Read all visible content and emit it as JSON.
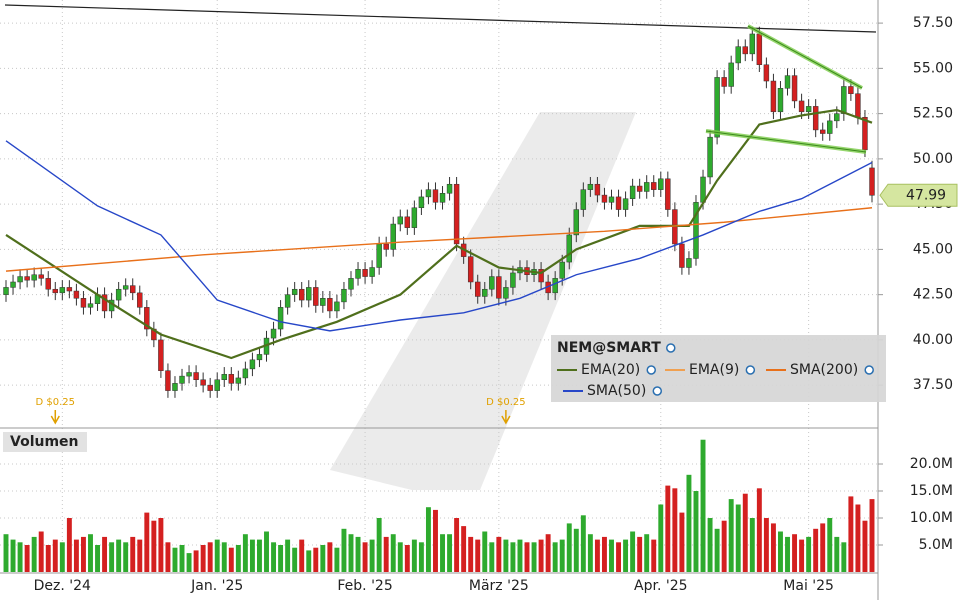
{
  "chart_data": {
    "type": "candlestick",
    "title": "NEM@SMART",
    "volume_label": "Volumen",
    "categories": [
      null,
      null,
      null,
      null,
      null,
      null,
      null,
      null,
      "Dez. '24",
      null,
      null,
      null,
      null,
      null,
      null,
      null,
      null,
      null,
      null,
      null,
      null,
      null,
      null,
      null,
      null,
      null,
      null,
      null,
      null,
      null,
      "Jan. '25",
      null,
      null,
      null,
      null,
      null,
      null,
      null,
      null,
      null,
      null,
      null,
      null,
      null,
      null,
      null,
      null,
      null,
      null,
      null,
      null,
      "Feb. '25",
      null,
      null,
      null,
      null,
      null,
      null,
      null,
      null,
      null,
      null,
      null,
      null,
      null,
      null,
      null,
      null,
      null,
      null,
      "März '25",
      null,
      null,
      null,
      null,
      null,
      null,
      null,
      null,
      null,
      null,
      null,
      null,
      null,
      null,
      null,
      null,
      null,
      null,
      null,
      null,
      null,
      null,
      "Apr. '25",
      null,
      null,
      null,
      null,
      null,
      null,
      null,
      null,
      null,
      null,
      null,
      null,
      null,
      null,
      null,
      null,
      null,
      null,
      null,
      null,
      "Mai '25",
      null,
      null,
      null,
      null,
      null,
      null,
      null,
      null,
      null
    ],
    "open": [
      42.5,
      42.9,
      43.2,
      43.5,
      43.3,
      43.6,
      43.4,
      42.8,
      42.6,
      42.9,
      42.7,
      42.3,
      41.8,
      42.0,
      42.5,
      41.6,
      42.2,
      42.8,
      43.0,
      42.6,
      41.8,
      40.6,
      40.0,
      38.3,
      37.2,
      37.6,
      38.0,
      38.2,
      37.8,
      37.5,
      37.2,
      37.8,
      38.1,
      37.6,
      37.9,
      38.4,
      38.9,
      39.2,
      40.1,
      40.6,
      41.8,
      42.5,
      42.8,
      42.2,
      42.9,
      41.9,
      42.3,
      41.6,
      42.1,
      42.8,
      43.4,
      43.9,
      43.5,
      44.0,
      45.3,
      45.0,
      46.4,
      46.8,
      46.2,
      47.3,
      47.9,
      48.3,
      47.6,
      48.1,
      48.6,
      45.3,
      44.6,
      43.2,
      42.4,
      42.8,
      43.5,
      42.3,
      42.9,
      43.7,
      44.0,
      43.6,
      43.9,
      43.2,
      42.6,
      43.4,
      44.3,
      45.8,
      47.2,
      48.3,
      48.6,
      48.0,
      47.6,
      47.9,
      47.2,
      47.8,
      48.5,
      48.2,
      48.7,
      48.3,
      48.9,
      47.2,
      45.3,
      44.0,
      44.5,
      47.6,
      49.0,
      51.2,
      54.5,
      54.0,
      55.3,
      56.2,
      55.8,
      56.9,
      55.2,
      54.3,
      52.6,
      53.9,
      54.6,
      53.2,
      52.6,
      52.9,
      51.6,
      51.4,
      52.1,
      52.5,
      54.0,
      53.6,
      52.3,
      49.5
    ],
    "high": [
      43.3,
      43.6,
      43.9,
      43.9,
      44.0,
      44.0,
      43.8,
      43.2,
      43.3,
      43.3,
      43.1,
      42.7,
      42.4,
      42.9,
      42.9,
      42.6,
      43.2,
      43.4,
      43.4,
      43.0,
      42.2,
      41.0,
      40.4,
      38.7,
      38.0,
      38.4,
      38.6,
      38.6,
      38.2,
      37.9,
      38.2,
      38.5,
      38.5,
      38.3,
      38.8,
      39.3,
      39.6,
      40.5,
      41.0,
      42.2,
      42.9,
      43.2,
      43.2,
      43.3,
      43.3,
      42.7,
      42.7,
      42.5,
      43.2,
      43.8,
      44.3,
      44.3,
      44.4,
      45.7,
      45.7,
      46.8,
      47.2,
      47.2,
      47.7,
      48.3,
      48.7,
      48.7,
      48.5,
      49.0,
      49.0,
      45.7,
      45.0,
      43.6,
      43.2,
      43.9,
      43.9,
      43.3,
      44.1,
      44.4,
      44.4,
      44.3,
      44.3,
      43.6,
      43.8,
      44.7,
      46.2,
      47.6,
      48.7,
      49.0,
      49.0,
      48.4,
      48.3,
      48.3,
      48.2,
      48.9,
      48.9,
      49.1,
      49.1,
      49.3,
      49.3,
      47.6,
      45.7,
      44.9,
      48.0,
      49.4,
      51.6,
      54.9,
      54.9,
      55.7,
      56.6,
      56.6,
      57.3,
      57.3,
      55.6,
      54.7,
      54.3,
      55.0,
      55.0,
      53.6,
      53.3,
      53.3,
      52.0,
      52.5,
      52.9,
      54.4,
      54.4,
      54.0,
      52.7,
      49.9
    ],
    "low": [
      42.1,
      42.5,
      42.8,
      42.9,
      42.9,
      43.0,
      42.4,
      42.2,
      42.2,
      42.3,
      41.9,
      41.4,
      41.4,
      41.6,
      41.2,
      41.2,
      41.8,
      42.4,
      42.2,
      41.4,
      40.2,
      39.6,
      37.9,
      36.8,
      36.8,
      37.2,
      37.6,
      37.4,
      37.1,
      36.8,
      36.8,
      37.4,
      37.2,
      37.2,
      37.5,
      38.0,
      38.5,
      38.8,
      39.7,
      40.2,
      41.4,
      42.1,
      41.8,
      41.8,
      41.5,
      41.5,
      41.2,
      41.2,
      41.7,
      42.4,
      43.0,
      43.1,
      43.1,
      43.6,
      44.6,
      44.6,
      46.0,
      45.8,
      45.8,
      46.9,
      47.5,
      47.2,
      47.2,
      47.7,
      44.9,
      44.2,
      42.8,
      42.0,
      42.0,
      42.4,
      41.9,
      41.9,
      42.5,
      43.3,
      43.2,
      43.2,
      42.8,
      42.2,
      42.2,
      43.0,
      43.9,
      45.4,
      46.8,
      47.9,
      47.6,
      47.2,
      47.2,
      46.8,
      46.8,
      47.4,
      47.8,
      47.8,
      47.9,
      47.9,
      46.8,
      44.9,
      43.6,
      43.6,
      44.1,
      47.2,
      48.6,
      50.8,
      53.6,
      53.6,
      54.9,
      55.4,
      55.4,
      54.8,
      53.9,
      52.2,
      52.2,
      53.5,
      52.8,
      52.2,
      52.2,
      51.2,
      51.0,
      51.0,
      51.7,
      52.1,
      53.2,
      51.9,
      50.1,
      47.6
    ],
    "close": [
      42.9,
      43.2,
      43.5,
      43.3,
      43.6,
      43.4,
      42.8,
      42.6,
      42.9,
      42.7,
      42.3,
      41.8,
      42.0,
      42.5,
      41.6,
      42.2,
      42.8,
      43.0,
      42.6,
      41.8,
      40.6,
      40.0,
      38.3,
      37.2,
      37.6,
      38.0,
      38.2,
      37.8,
      37.5,
      37.2,
      37.8,
      38.1,
      37.6,
      37.9,
      38.4,
      38.9,
      39.2,
      40.1,
      40.6,
      41.8,
      42.5,
      42.8,
      42.2,
      42.9,
      41.9,
      42.3,
      41.6,
      42.1,
      42.8,
      43.4,
      43.9,
      43.5,
      44.0,
      45.3,
      45.0,
      46.4,
      46.8,
      46.2,
      47.3,
      47.9,
      48.3,
      47.6,
      48.1,
      48.6,
      45.3,
      44.6,
      43.2,
      42.4,
      42.8,
      43.5,
      42.3,
      42.9,
      43.7,
      44.0,
      43.6,
      43.9,
      43.2,
      42.6,
      43.4,
      44.3,
      45.8,
      47.2,
      48.3,
      48.6,
      48.0,
      47.6,
      47.9,
      47.2,
      47.8,
      48.5,
      48.2,
      48.7,
      48.3,
      48.9,
      47.2,
      45.3,
      44.0,
      44.5,
      47.6,
      49.0,
      51.2,
      54.5,
      54.0,
      55.3,
      56.2,
      55.8,
      56.9,
      55.2,
      54.3,
      52.6,
      53.9,
      54.6,
      53.2,
      52.6,
      52.9,
      51.6,
      51.4,
      52.1,
      52.5,
      54.0,
      53.6,
      52.3,
      50.5,
      47.99
    ],
    "volume": [
      7.0,
      6.0,
      5.5,
      5.0,
      6.5,
      7.5,
      5.0,
      6.0,
      5.5,
      10.0,
      6.0,
      6.5,
      7.0,
      5.0,
      6.5,
      5.5,
      6.0,
      5.5,
      6.5,
      6.0,
      11.0,
      9.5,
      10.0,
      5.5,
      4.5,
      5.0,
      3.5,
      4.0,
      5.0,
      5.5,
      6.0,
      5.5,
      4.5,
      5.0,
      7.0,
      6.0,
      6.0,
      7.5,
      5.5,
      5.0,
      6.0,
      4.5,
      6.0,
      4.0,
      4.5,
      5.0,
      5.5,
      4.5,
      8.0,
      7.0,
      6.5,
      5.5,
      6.0,
      10.0,
      6.5,
      7.0,
      5.5,
      5.0,
      6.0,
      5.5,
      12.0,
      11.5,
      7.0,
      7.0,
      10.0,
      8.5,
      6.5,
      6.0,
      7.5,
      5.5,
      6.5,
      6.0,
      5.5,
      6.0,
      5.5,
      5.5,
      6.0,
      7.0,
      5.5,
      6.0,
      9.0,
      8.0,
      10.5,
      7.0,
      6.0,
      6.5,
      6.0,
      5.5,
      6.0,
      7.5,
      6.5,
      7.0,
      6.0,
      12.5,
      16.0,
      15.5,
      11.0,
      18.0,
      15.0,
      24.5,
      10.0,
      8.0,
      9.5,
      13.5,
      12.5,
      14.5,
      10.0,
      15.5,
      10.0,
      9.0,
      7.5,
      6.5,
      7.0,
      6.0,
      6.5,
      8.0,
      9.0,
      10.0,
      6.5,
      5.5,
      14.0,
      12.5,
      9.5,
      13.5
    ],
    "up_color": "#2eaa2e",
    "down_color": "#d42020",
    "ylim": [
      35.3,
      58.5
    ],
    "yticks": [
      {
        "value": 57.5,
        "label": "57.50"
      },
      {
        "value": 55,
        "label": "55.00"
      },
      {
        "value": 52.5,
        "label": "52.50"
      },
      {
        "value": 50,
        "label": "50.00"
      },
      {
        "value": 47.5,
        "label": "47.50"
      },
      {
        "value": 45,
        "label": "45.00"
      },
      {
        "value": 42.5,
        "label": "42.50"
      },
      {
        "value": 40,
        "label": "40.00"
      },
      {
        "value": 37.5,
        "label": "37.50"
      }
    ],
    "y2lim": [
      0,
      26.3
    ],
    "y2ticks": [
      {
        "value": 20,
        "label": "20.0M"
      },
      {
        "value": 15,
        "label": "15.0M"
      },
      {
        "value": 10,
        "label": "10.0M"
      },
      {
        "value": 5,
        "label": "5.0M"
      }
    ],
    "grid": true,
    "series": [
      {
        "name": "EMA(20)",
        "color": "#4f6f1c",
        "x": [
          0,
          13,
          22,
          32,
          39,
          47,
          56,
          64,
          70,
          76,
          81,
          90,
          97,
          101,
          107,
          113,
          118,
          123
        ],
        "values": [
          45.8,
          42.5,
          40.3,
          39.0,
          40.0,
          41.0,
          42.5,
          45.2,
          44.0,
          43.7,
          45.0,
          46.3,
          46.3,
          48.8,
          51.9,
          52.4,
          52.7,
          52.0
        ]
      },
      {
        "name": "EMA(9)",
        "color": "#f0a050",
        "x": [],
        "values": []
      },
      {
        "name": "SMA(200)",
        "color": "#e8701a",
        "x": [
          0,
          28,
          56,
          85,
          102,
          123
        ],
        "values": [
          43.8,
          44.7,
          45.4,
          46.0,
          46.5,
          47.3
        ]
      },
      {
        "name": "SMA(50)",
        "color": "#2747c8",
        "x": [
          0,
          13,
          22,
          30,
          39,
          46,
          56,
          65,
          73,
          81,
          90,
          99,
          107,
          113,
          118,
          123
        ],
        "values": [
          51.0,
          47.4,
          45.8,
          42.2,
          41.0,
          40.5,
          41.1,
          41.5,
          42.3,
          43.6,
          44.5,
          45.8,
          47.1,
          47.8,
          48.8,
          49.8
        ]
      }
    ],
    "annotations": [
      {
        "text": "D $0.25",
        "x": 7
      },
      {
        "text": "D $0.25",
        "x": 71
      }
    ]
  }
}
